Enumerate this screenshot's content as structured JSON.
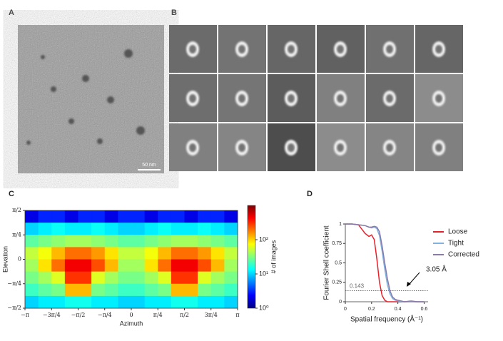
{
  "panels": {
    "a": {
      "label": "A",
      "scale_bar": "50 nm"
    },
    "b": {
      "label": "B"
    }
  },
  "chart_data": [
    {
      "type": "heatmap",
      "panel_label": "C",
      "x_label": "Azimuth",
      "y_label": "Elevation",
      "colorbar_label": "# of images",
      "xlim": [
        -3.14159,
        3.14159
      ],
      "ylim": [
        -1.5708,
        1.5708
      ],
      "xticks": [
        {
          "value": -3.14159,
          "label": "−π"
        },
        {
          "value": -2.35619,
          "label": "−3π/4"
        },
        {
          "value": -1.5708,
          "label": "−π/2"
        },
        {
          "value": -0.7854,
          "label": "−π/4"
        },
        0,
        {
          "value": 0.7854,
          "label": "π/4"
        },
        {
          "value": 1.5708,
          "label": "π/2"
        },
        {
          "value": 2.35619,
          "label": "3π/4"
        },
        {
          "value": 3.14159,
          "label": "π"
        }
      ],
      "yticks": [
        {
          "value": -1.5708,
          "label": "−π/2"
        },
        {
          "value": -0.7854,
          "label": "−π/4"
        },
        0,
        {
          "value": 0.7854,
          "label": "π/4"
        },
        {
          "value": 1.5708,
          "label": "π/2"
        }
      ],
      "log_scale_color": true,
      "zlim": [
        1,
        1000
      ],
      "zticks": [
        {
          "value": 1,
          "label": "10⁰"
        },
        {
          "value": 10,
          "label": "10¹"
        },
        {
          "value": 100,
          "label": "10²"
        }
      ],
      "z": [
        [
          2,
          3,
          3,
          2,
          3,
          3,
          2,
          3,
          3,
          2,
          3,
          3,
          2,
          3,
          3,
          2
        ],
        [
          10,
          12,
          14,
          12,
          12,
          14,
          12,
          10,
          10,
          12,
          14,
          12,
          12,
          14,
          12,
          10
        ],
        [
          25,
          30,
          35,
          40,
          40,
          35,
          30,
          25,
          25,
          30,
          35,
          40,
          40,
          35,
          30,
          25
        ],
        [
          50,
          70,
          120,
          200,
          200,
          150,
          90,
          50,
          50,
          70,
          120,
          200,
          200,
          150,
          90,
          50
        ],
        [
          40,
          90,
          200,
          450,
          450,
          250,
          120,
          40,
          40,
          90,
          200,
          450,
          450,
          250,
          120,
          40
        ],
        [
          30,
          40,
          60,
          300,
          300,
          60,
          40,
          30,
          30,
          40,
          60,
          300,
          300,
          60,
          40,
          30
        ],
        [
          20,
          25,
          30,
          120,
          120,
          30,
          25,
          20,
          20,
          25,
          30,
          120,
          120,
          30,
          25,
          20
        ],
        [
          10,
          12,
          12,
          15,
          15,
          12,
          12,
          10,
          10,
          12,
          12,
          15,
          15,
          12,
          12,
          10
        ]
      ]
    },
    {
      "type": "line",
      "panel_label": "D",
      "x_label": "Spatial frequency (Å⁻¹)",
      "y_label": "Fourier Shell coefficient",
      "xlim": [
        0,
        0.63
      ],
      "ylim": [
        0,
        1
      ],
      "xticks": [
        0,
        0.2,
        0.4,
        0.6
      ],
      "yticks": [
        0,
        0.25,
        0.5,
        0.75,
        1
      ],
      "threshold": 0.143,
      "annotation": "3.05 Å",
      "legend": "right",
      "x": [
        0,
        0.05,
        0.1,
        0.15,
        0.18,
        0.2,
        0.22,
        0.24,
        0.26,
        0.28,
        0.3,
        0.32,
        0.34,
        0.36,
        0.38,
        0.4,
        0.45,
        0.5,
        0.55,
        0.6
      ],
      "series": [
        {
          "name": "Loose",
          "color": "#e8202a",
          "values": [
            1,
            1,
            0.99,
            0.88,
            0.84,
            0.86,
            0.8,
            0.55,
            0.25,
            0.08,
            0.02,
            0,
            0,
            0,
            0,
            0,
            0,
            0,
            0,
            0
          ]
        },
        {
          "name": "Tight",
          "color": "#7fb2e0",
          "values": [
            1,
            1,
            0.99,
            0.98,
            0.96,
            0.95,
            0.96,
            0.94,
            0.85,
            0.65,
            0.42,
            0.22,
            0.1,
            0.04,
            0.02,
            0.01,
            0,
            0,
            0,
            0
          ]
        },
        {
          "name": "Corrected",
          "color": "#8a7aa8",
          "values": [
            1,
            1,
            0.99,
            0.98,
            0.96,
            0.96,
            0.97,
            0.96,
            0.9,
            0.72,
            0.5,
            0.3,
            0.14,
            0.06,
            0.03,
            0.02,
            0,
            0.01,
            0,
            0
          ]
        }
      ]
    }
  ]
}
